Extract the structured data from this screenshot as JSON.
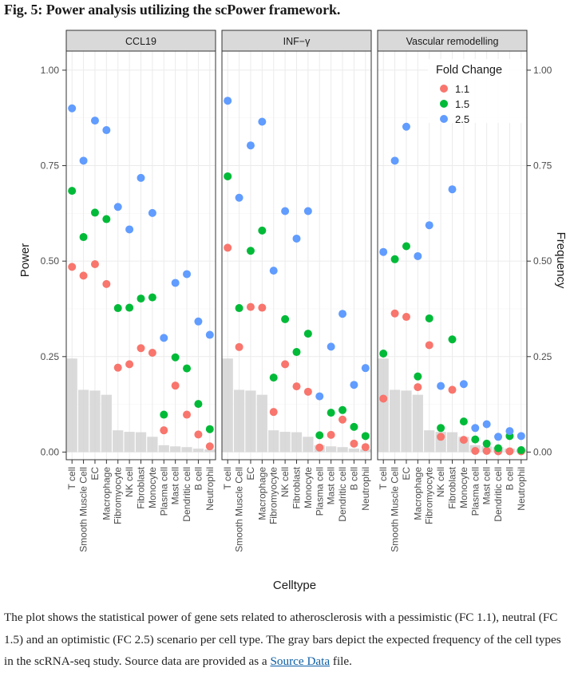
{
  "figure": {
    "title": "Fig. 5: Power analysis utilizing the scPower framework."
  },
  "caption": {
    "text": "The plot shows the statistical power of gene sets related to atherosclerosis with a pessimistic (FC 1.1), neutral (FC 1.5) and an optimistic (FC 2.5) scenario per cell type. The gray bars depict the expected frequency of the cell types in the scRNA-seq study. Source data are provided as a ",
    "link_text": "Source Data",
    "end_text": " file."
  },
  "chart_data": {
    "type": "scatter",
    "xlabel": "Celltype",
    "ylabel": "Power",
    "y2label": "Frequency",
    "ylim": [
      -0.02,
      1.05
    ],
    "yticks": [
      0.0,
      0.25,
      0.5,
      0.75,
      1.0
    ],
    "ytick_labels": [
      "0.00",
      "0.25",
      "0.50",
      "0.75",
      "1.00"
    ],
    "grid": true,
    "legend": {
      "title": "Fold Change",
      "position": "top-right",
      "entries": [
        {
          "label": "1.1",
          "color": "#F8766D"
        },
        {
          "label": "1.5",
          "color": "#00BA38"
        },
        {
          "label": "2.5",
          "color": "#619CFF"
        }
      ]
    },
    "categories": [
      "T cell",
      "Smooth Muscle Cell",
      "EC",
      "Macrophage",
      "Fibromyocyte",
      "NK cell",
      "Fibroblast",
      "Monocyte",
      "Plasma cell",
      "Mast cell",
      "Dendritic cell",
      "B cell",
      "Neutrophil"
    ],
    "frequency": [
      0.245,
      0.163,
      0.161,
      0.15,
      0.057,
      0.053,
      0.052,
      0.04,
      0.018,
      0.015,
      0.013,
      0.009,
      0.007
    ],
    "panels": [
      {
        "title": "CCL19",
        "series": [
          {
            "name": "1.1",
            "values": [
              0.485,
              0.462,
              0.492,
              0.44,
              0.221,
              0.23,
              0.272,
              0.26,
              0.057,
              0.174,
              0.098,
              0.046,
              0.015
            ]
          },
          {
            "name": "1.5",
            "values": [
              0.684,
              0.563,
              0.627,
              0.61,
              0.377,
              0.378,
              0.402,
              0.405,
              0.098,
              0.248,
              0.219,
              0.126,
              0.06
            ]
          },
          {
            "name": "2.5",
            "values": [
              0.9,
              0.763,
              0.868,
              0.843,
              0.642,
              0.583,
              0.718,
              0.626,
              0.299,
              0.443,
              0.466,
              0.342,
              0.307
            ]
          }
        ]
      },
      {
        "title": "INF−γ",
        "series": [
          {
            "name": "1.1",
            "values": [
              0.535,
              0.275,
              0.38,
              0.378,
              0.105,
              0.23,
              0.172,
              0.158,
              0.012,
              0.045,
              0.085,
              0.022,
              0.013
            ]
          },
          {
            "name": "1.5",
            "values": [
              0.722,
              0.377,
              0.527,
              0.58,
              0.195,
              0.348,
              0.262,
              0.31,
              0.044,
              0.103,
              0.11,
              0.066,
              0.042
            ]
          },
          {
            "name": "2.5",
            "values": [
              0.92,
              0.666,
              0.803,
              0.865,
              0.475,
              0.631,
              0.559,
              0.631,
              0.146,
              0.276,
              0.362,
              0.176,
              0.22
            ]
          }
        ]
      },
      {
        "title": "Vascular remodelling",
        "series": [
          {
            "name": "1.1",
            "values": [
              0.14,
              0.363,
              0.354,
              0.17,
              0.28,
              0.04,
              0.163,
              0.032,
              0.003,
              0.003,
              0.002,
              0.002,
              0.002
            ]
          },
          {
            "name": "1.5",
            "values": [
              0.258,
              0.505,
              0.539,
              0.198,
              0.35,
              0.063,
              0.295,
              0.08,
              0.033,
              0.022,
              0.01,
              0.042,
              0.005
            ]
          },
          {
            "name": "2.5",
            "values": [
              0.524,
              0.763,
              0.852,
              0.513,
              0.594,
              0.173,
              0.688,
              0.178,
              0.063,
              0.073,
              0.04,
              0.055,
              0.042
            ]
          }
        ]
      }
    ]
  }
}
